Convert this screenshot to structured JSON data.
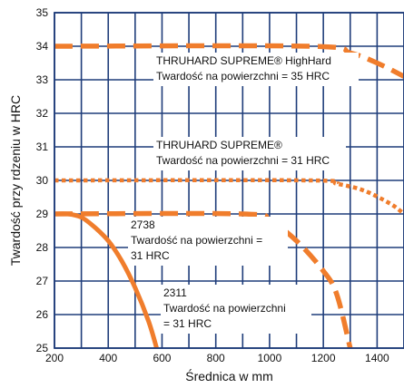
{
  "chart_data": {
    "type": "line",
    "xlabel": "Średnica w mm",
    "ylabel": "Twardość przy rdzeniu w HRC",
    "xlim": [
      200,
      1500
    ],
    "ylim": [
      25,
      35
    ],
    "x_ticks": [
      200,
      400,
      600,
      800,
      1000,
      1200,
      1400
    ],
    "y_ticks": [
      25,
      26,
      27,
      28,
      29,
      30,
      31,
      32,
      33,
      34,
      35
    ],
    "grid": true,
    "line_color": "#f07d2c",
    "series": [
      {
        "name": "THRUHARD SUPREME® HighHard",
        "style": "dashed",
        "points": [
          [
            200,
            34.0
          ],
          [
            1150,
            34.0
          ],
          [
            1300,
            33.8
          ],
          [
            1400,
            33.5
          ],
          [
            1500,
            33.1
          ]
        ]
      },
      {
        "name": "THRUHARD SUPREME®",
        "style": "dotted",
        "points": [
          [
            200,
            30.0
          ],
          [
            1150,
            30.0
          ],
          [
            1250,
            29.9
          ],
          [
            1350,
            29.7
          ],
          [
            1450,
            29.3
          ],
          [
            1500,
            29.0
          ]
        ]
      },
      {
        "name": "2738",
        "style": "dashed",
        "points": [
          [
            200,
            29.0
          ],
          [
            900,
            29.0
          ],
          [
            1000,
            28.8
          ],
          [
            1100,
            28.2
          ],
          [
            1200,
            27.3
          ],
          [
            1250,
            26.6
          ],
          [
            1300,
            25.0
          ]
        ]
      },
      {
        "name": "2311",
        "style": "solid",
        "points": [
          [
            200,
            29.0
          ],
          [
            250,
            29.0
          ],
          [
            300,
            28.9
          ],
          [
            350,
            28.6
          ],
          [
            400,
            28.2
          ],
          [
            450,
            27.6
          ],
          [
            500,
            26.8
          ],
          [
            550,
            25.8
          ],
          [
            580,
            25.0
          ]
        ]
      }
    ],
    "annotations": [
      {
        "lines": [
          "THRUHARD SUPREME® HighHard",
          "Twardość na powierzchni = 35 HRC"
        ]
      },
      {
        "lines": [
          "THRUHARD SUPREME®",
          "Twardość na powierzchni = 31 HRC"
        ]
      },
      {
        "lines": [
          "2738",
          "Twardość na powierzchni  =",
          "31 HRC"
        ]
      },
      {
        "lines": [
          "2311",
          "Twardość na powierzchni",
          "= 31 HRC"
        ]
      }
    ]
  }
}
